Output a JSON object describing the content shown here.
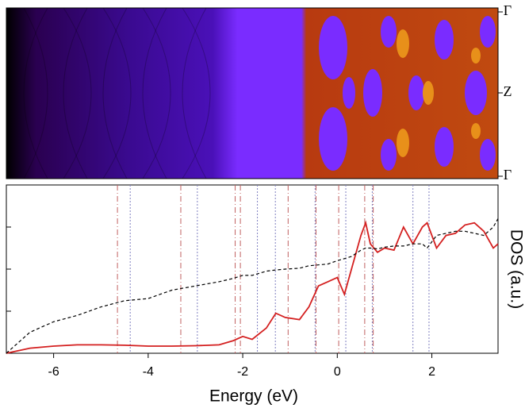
{
  "chart_data": {
    "type": "line",
    "kpath": [
      "Γ",
      "Z",
      "Γ"
    ],
    "xlabel": "Energy (eV)",
    "ylabel": "DOS (a.u.)",
    "xlim": [
      -7,
      3.4
    ],
    "ylim": [
      0,
      4
    ],
    "xticks": [
      -6,
      -4,
      -2,
      0,
      2
    ],
    "yticks": [
      1,
      2,
      3
    ],
    "x": [
      -7,
      -6.5,
      -6,
      -5.5,
      -5,
      -4.5,
      -4,
      -3.5,
      -3,
      -2.5,
      -2.2,
      -2,
      -1.8,
      -1.5,
      -1.3,
      -1.1,
      -0.8,
      -0.6,
      -0.4,
      -0.2,
      0,
      0.15,
      0.3,
      0.5,
      0.6,
      0.7,
      0.85,
      1,
      1.2,
      1.4,
      1.6,
      1.8,
      1.9,
      2.1,
      2.3,
      2.5,
      2.7,
      2.9,
      3.1,
      3.3,
      3.4
    ],
    "series": [
      {
        "color": "#d42020",
        "dash": "solid",
        "values": [
          0,
          0.12,
          0.17,
          0.2,
          0.2,
          0.19,
          0.17,
          0.17,
          0.18,
          0.2,
          0.3,
          0.4,
          0.33,
          0.6,
          0.95,
          0.85,
          0.8,
          1.1,
          1.6,
          1.7,
          1.8,
          1.4,
          2.0,
          2.8,
          3.1,
          2.6,
          2.4,
          2.5,
          2.45,
          3.0,
          2.6,
          3.0,
          3.1,
          2.5,
          2.8,
          2.85,
          3.05,
          3.1,
          2.9,
          2.5,
          2.6
        ]
      },
      {
        "color": "#000000",
        "dash": "dashed",
        "values": [
          0,
          0.5,
          0.75,
          0.9,
          1.1,
          1.25,
          1.3,
          1.5,
          1.6,
          1.7,
          1.78,
          1.85,
          1.85,
          1.95,
          1.98,
          2.0,
          2.02,
          2.08,
          2.1,
          2.12,
          2.2,
          2.25,
          2.3,
          2.45,
          2.5,
          2.5,
          2.48,
          2.52,
          2.55,
          2.55,
          2.6,
          2.6,
          2.5,
          2.8,
          2.85,
          2.9,
          2.9,
          2.85,
          2.8,
          3.0,
          3.2
        ]
      }
    ],
    "vlines": [
      {
        "color": "#c06060",
        "dash": "dashdot",
        "x": [
          -4.65,
          -3.31,
          -2.16,
          -2.05,
          -1.04,
          -0.45,
          0.03,
          0.58,
          0.76
        ]
      },
      {
        "color": "#8080c0",
        "dash": "dotted",
        "x": [
          -4.38,
          -2.96,
          -1.69,
          -1.31,
          -0.47,
          0.18,
          0.74,
          1.6,
          1.94
        ]
      }
    ]
  }
}
